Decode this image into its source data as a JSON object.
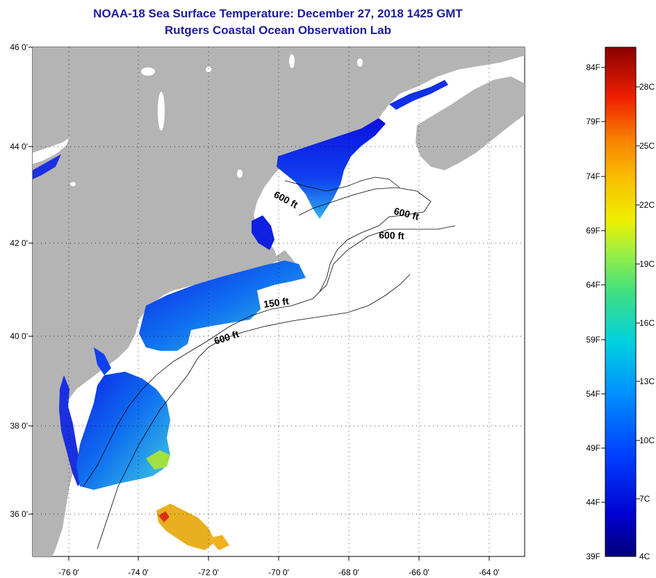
{
  "title_line1": "NOAA-18 Sea Surface Temperature:  December 27, 2018 1425 GMT",
  "title_line2": "Rutgers Coastal Ocean Observation Lab",
  "lat_labels": [
    "46 0'",
    "44 0'",
    "42 0'",
    "40 0'",
    "38 0'",
    "36 0'"
  ],
  "lon_labels": [
    "-76 0'",
    "-74 0'",
    "-72 0'",
    "-70 0'",
    "-68 0'",
    "-66 0'",
    "-64 0'"
  ],
  "isobath_labels": [
    "600 ft",
    "600 ft",
    "600 ft",
    "150 ft",
    "600 ft"
  ],
  "colorbar": {
    "fahrenheit": [
      "84F",
      "79F",
      "74F",
      "69F",
      "64F",
      "59F",
      "54F",
      "49F",
      "44F",
      "39F"
    ],
    "celsius": [
      "28C",
      "25C",
      "22C",
      "19C",
      "16C",
      "13C",
      "10C",
      "7C",
      "4C"
    ]
  },
  "colors": {
    "title": "#1a1a9c",
    "land": "#b4b4b4",
    "water_no_data": "#ffffff",
    "sst_cold": "#0a0ae0",
    "sst_warm": "#e8a020"
  }
}
